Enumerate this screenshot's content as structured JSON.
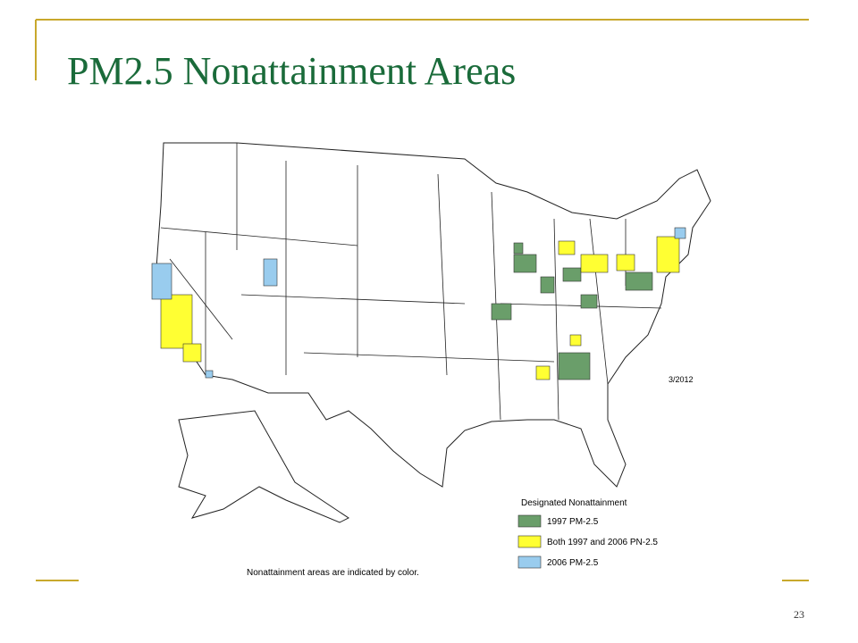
{
  "title": "PM2.5 Nonattainment Areas",
  "map": {
    "date": "3/2012",
    "legend": {
      "title": "Designated Nonattainment",
      "items": [
        {
          "label": "1997 PM-2.5",
          "color": "#6a9e6a"
        },
        {
          "label": "Both 1997 and 2006 PN-2.5",
          "color": "#ffff33"
        },
        {
          "label": "2006 PM-2.5",
          "color": "#99ccee"
        }
      ]
    },
    "note": "Nonattainment areas are indicated by color."
  },
  "page_number": "23"
}
